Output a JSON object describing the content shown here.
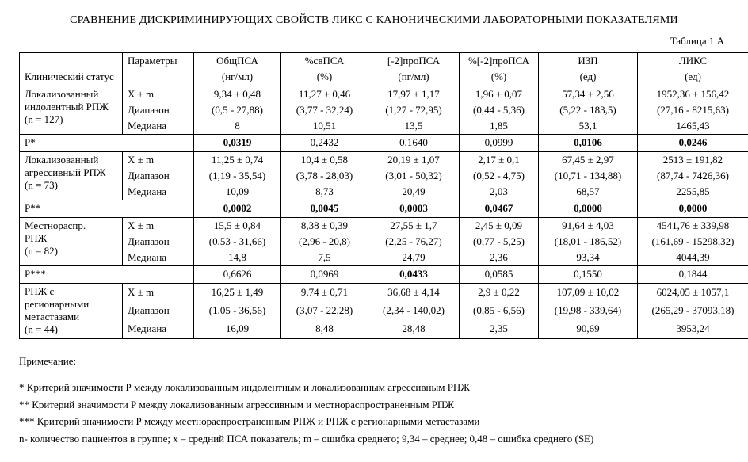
{
  "title": "СРАВНЕНИЕ ДИСКРИМИНИРУЮЩИХ СВОЙСТВ ЛИКС С КАНОНИЧЕСКИМИ ЛАБОРАТОРНЫМИ ПОКАЗАТЕЛЯМИ",
  "table_label": "Таблица 1 А",
  "headers": {
    "status": "Клинический статус",
    "param": "Параметры",
    "c1": "ОбщПСА",
    "c1u": "(нг/мл)",
    "c2": "%свПСА",
    "c2u": "(%)",
    "c3": "[-2]проПСА",
    "c3u": "(пг/мл)",
    "c4": "%[-2]проПСА",
    "c4u": "(%)",
    "c5": "ИЗП",
    "c5u": "(ед)",
    "c6": "ЛИКС",
    "c6u": "(ед)"
  },
  "param_labels": {
    "xm": "X ± m",
    "range": "Диапазон",
    "median": "Медиана"
  },
  "groups": [
    {
      "status_l1": "Локализованный",
      "status_l2": "индолентный РПЖ",
      "status_l3": "(n = 127)",
      "xm": [
        "9,34 ± 0,48",
        "11,27 ± 0,46",
        "17,97 ± 1,17",
        "1,96 ± 0,07",
        "57,34 ± 2,56",
        "1952,36 ± 156,42"
      ],
      "range": [
        "(0,5 - 27,88)",
        "(3,77 - 32,24)",
        "(1,27 - 72,95)",
        "(0,44 - 5,36)",
        "(5,22 - 183,5)",
        "(27,16 - 8215,63)"
      ],
      "median": [
        "8",
        "10,51",
        "13,5",
        "1,85",
        "53,1",
        "1465,43"
      ],
      "p_label": "P*",
      "p": [
        "0,0319",
        "0,2432",
        "0,1640",
        "0,0999",
        "0,0106",
        "0,0246"
      ],
      "p_bold": [
        true,
        false,
        false,
        false,
        true,
        true
      ]
    },
    {
      "status_l1": "Локализованный",
      "status_l2": "агрессивный РПЖ",
      "status_l3": "(n = 73)",
      "xm": [
        "11,25 ± 0,74",
        "10,4 ± 0,58",
        "20,19 ± 1,07",
        "2,17 ± 0,1",
        "67,45 ± 2,97",
        "2513 ± 191,82"
      ],
      "range": [
        "(1,19 - 35,54)",
        "(3,78 - 28,03)",
        "(3,01 - 50,32)",
        "(0,52 - 4,75)",
        "(10,71 - 134,88)",
        "(87,74 - 7426,36)"
      ],
      "median": [
        "10,09",
        "8,73",
        "20,49",
        "2,03",
        "68,57",
        "2255,85"
      ],
      "p_label": "P**",
      "p": [
        "0,0002",
        "0,0045",
        "0,0003",
        "0,0467",
        "0,0000",
        "0,0000"
      ],
      "p_bold": [
        true,
        true,
        true,
        true,
        true,
        true
      ]
    },
    {
      "status_l1": "Местнораспр.",
      "status_l2": "РПЖ",
      "status_l3": "(n = 82)",
      "xm": [
        "15,5 ± 0,84",
        "8,38 ± 0,39",
        "27,55 ± 1,7",
        "2,45 ± 0,09",
        "91,64 ± 4,03",
        "4541,76 ± 339,98"
      ],
      "range": [
        "(0,53 - 31,66)",
        "(2,96 - 20,8)",
        "(2,25 - 76,27)",
        "(0,77 - 5,25)",
        "(18,01 - 186,52)",
        "(161,69 - 15298,32)"
      ],
      "median": [
        "14,8",
        "7,5",
        "24,79",
        "2,36",
        "93,34",
        "4044,39"
      ],
      "p_label": "P***",
      "p": [
        "0,6626",
        "0,0969",
        "0,0433",
        "0,0585",
        "0,1550",
        "0,1844"
      ],
      "p_bold": [
        false,
        false,
        true,
        false,
        false,
        false
      ]
    },
    {
      "status_l1": "РПЖ с регионарными",
      "status_l2": "метастазами",
      "status_l3": "(n = 44)",
      "xm": [
        "16,25 ± 1,49",
        "9,74 ± 0,71",
        "36,68 ± 4,14",
        "2,9 ± 0,22",
        "107,09 ± 10,02",
        "6024,05 ± 1057,1"
      ],
      "range": [
        "(1,05 - 36,56)",
        "(3,07 - 22,28)",
        "(2,34 - 140,02)",
        "(0,85 - 6,56)",
        "(19,98 - 339,64)",
        "(265,29 - 37093,18)"
      ],
      "median": [
        "16,09",
        "8,48",
        "28,48",
        "2,35",
        "90,69",
        "3953,24"
      ],
      "p_label": "",
      "p": [
        "",
        "",
        "",
        "",
        "",
        ""
      ],
      "p_bold": [
        false,
        false,
        false,
        false,
        false,
        false
      ]
    }
  ],
  "notes": {
    "heading": "Примечание:",
    "n1": "* Критерий значимости Р между локализованным индолентным и локализованным агрессивным РПЖ",
    "n2": "** Критерий значимости Р между локализованным агрессивным и местнораспространенным РПЖ",
    "n3": "*** Критерий значимости Р между местнораспространенным РПЖ и РПЖ с регионарными метастазами",
    "n4": "n- количество пациентов в группе; x – средний ПСА показатель; m – ошибка среднего; 9,34 – среднее; 0,48 – ошибка среднего (SE)"
  }
}
